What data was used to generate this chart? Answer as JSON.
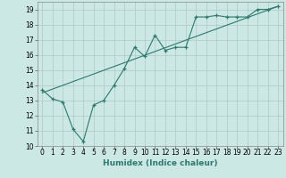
{
  "xlabel": "Humidex (Indice chaleur)",
  "ylabel": "",
  "bg_color": "#cce8e4",
  "grid_color": "#b0c8c4",
  "line_color": "#2a7a6e",
  "xlim": [
    -0.5,
    23.5
  ],
  "ylim": [
    10,
    19.5
  ],
  "yticks": [
    10,
    11,
    12,
    13,
    14,
    15,
    16,
    17,
    18,
    19
  ],
  "xticks": [
    0,
    1,
    2,
    3,
    4,
    5,
    6,
    7,
    8,
    9,
    10,
    11,
    12,
    13,
    14,
    15,
    16,
    17,
    18,
    19,
    20,
    21,
    22,
    23
  ],
  "line1_x": [
    0,
    1,
    2,
    3,
    4,
    5,
    6,
    7,
    8,
    9,
    10,
    11,
    12,
    13,
    14,
    15,
    16,
    17,
    18,
    19,
    20,
    21,
    22,
    23
  ],
  "line1_y": [
    13.7,
    13.1,
    12.9,
    11.1,
    10.3,
    12.7,
    13.0,
    14.0,
    15.1,
    16.5,
    15.9,
    17.3,
    16.3,
    16.5,
    16.5,
    18.5,
    18.5,
    18.6,
    18.5,
    18.5,
    18.5,
    19.0,
    19.0,
    19.2
  ],
  "line2_x": [
    0,
    23
  ],
  "line2_y": [
    13.5,
    19.2
  ],
  "tick_fontsize": 5.5,
  "xlabel_fontsize": 6.5
}
